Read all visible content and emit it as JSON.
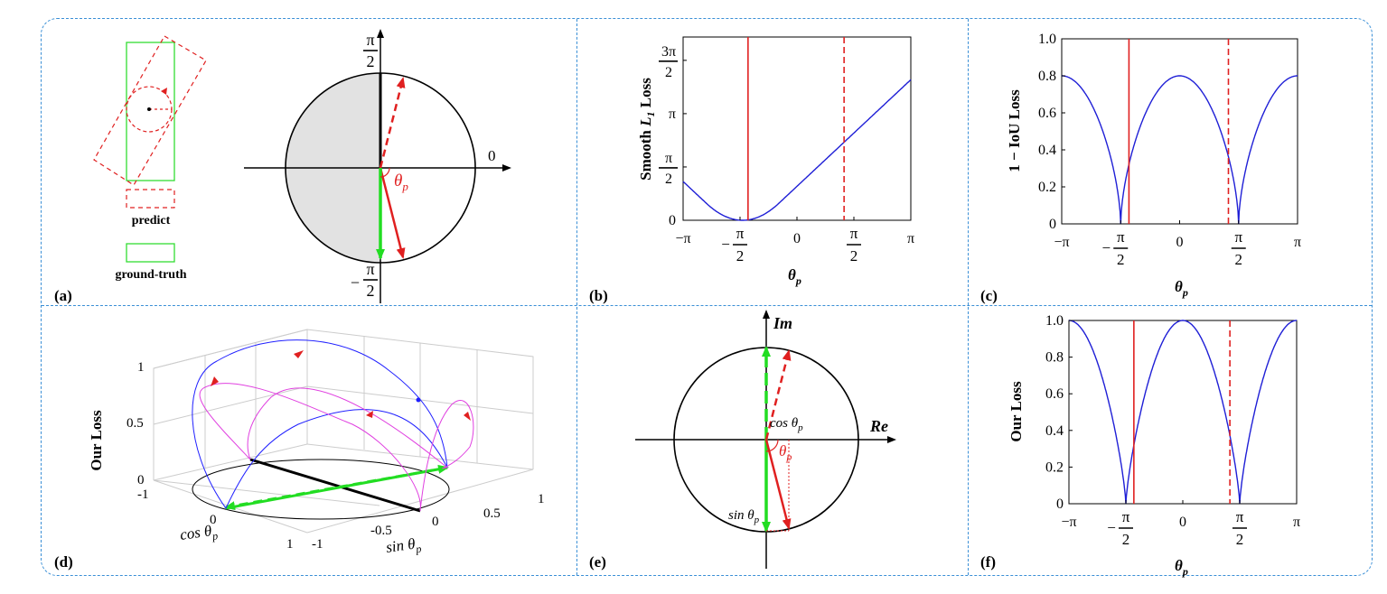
{
  "panels": {
    "a": {
      "label": "(a)",
      "legend_predict": "predict",
      "legend_gt": "ground-truth",
      "top_tick_num": "π",
      "top_tick_den": "2",
      "bottom_tick_num": "π",
      "bottom_tick_den": "2",
      "bottom_tick_sign": "−",
      "right_tick": "0",
      "theta": "θ",
      "theta_sub": "p"
    },
    "b": {
      "label": "(b)"
    },
    "c": {
      "label": "(c)"
    },
    "d": {
      "label": "(d)",
      "zlabel": "Our Loss",
      "z_ticks": [
        "0",
        "0.5",
        "1"
      ],
      "x_ticks": [
        "-1",
        "0",
        "1"
      ],
      "y_ticks": [
        "-1",
        "-0.5",
        "0",
        "0.5",
        "1"
      ],
      "xlabel": "cos θ",
      "xlabel_sub": "p",
      "ylabel": "sin θ",
      "ylabel_sub": "p"
    },
    "e": {
      "label": "(e)",
      "im": "Im",
      "re": "Re",
      "cos_label": "cos θ",
      "cos_sub": "p",
      "sin_label": "sin θ",
      "sin_sub": "p",
      "theta": "θ",
      "theta_sub": "p"
    },
    "f": {
      "label": "(f)"
    }
  },
  "chart_data": [
    {
      "panel": "b",
      "type": "line",
      "ylabel": "Smooth L1 Loss",
      "ylabel_main": "Smooth ",
      "ylabel_L": "L",
      "ylabel_sub": "1",
      "ylabel_tail": " Loss",
      "xlabel": "θp",
      "xlabel_main": "θ",
      "xlabel_sub": "p",
      "x_ticks": [
        {
          "num": "−π",
          "den": ""
        },
        {
          "num": "π",
          "den": "2",
          "sign": "−"
        },
        {
          "num": "0",
          "den": ""
        },
        {
          "num": "π",
          "den": "2"
        },
        {
          "num": "π",
          "den": ""
        }
      ],
      "y_ticks": [
        {
          "num": "0",
          "den": ""
        },
        {
          "num": "π",
          "den": "2"
        },
        {
          "num": "π",
          "den": ""
        },
        {
          "num": "3π",
          "den": "2"
        }
      ],
      "xlim": [
        -3.14159,
        3.14159
      ],
      "ylim": [
        0,
        5.4
      ],
      "series": [
        {
          "x": [
            -3.14159,
            -2.8,
            -2.4,
            -2.0,
            -1.8,
            -1.6,
            -1.4,
            -1.2,
            -1.0,
            0.0,
            1.0,
            2.0,
            3.14159
          ],
          "y": [
            1.57,
            1.1,
            0.6,
            0.22,
            0.08,
            0.02,
            0.02,
            0.1,
            0.22,
            1.2,
            2.2,
            3.2,
            4.35
          ],
          "color": "#1f1fd6"
        }
      ],
      "vlines": [
        {
          "x": -1.35,
          "color": "#e02020",
          "style": "solid"
        },
        {
          "x": 1.3,
          "color": "#e02020",
          "style": "dashed"
        }
      ]
    },
    {
      "panel": "c",
      "type": "line",
      "ylabel": "1 − IoU Loss",
      "xlabel": "θp",
      "xlabel_main": "θ",
      "xlabel_sub": "p",
      "x_ticks": [
        {
          "num": "−π",
          "den": ""
        },
        {
          "num": "π",
          "den": "2",
          "sign": "−"
        },
        {
          "num": "0",
          "den": ""
        },
        {
          "num": "π",
          "den": "2"
        },
        {
          "num": "π",
          "den": ""
        }
      ],
      "y_ticks": [
        "0",
        "0.2",
        "0.4",
        "0.6",
        "0.8",
        "1.0"
      ],
      "xlim": [
        -3.14159,
        3.14159
      ],
      "ylim": [
        0,
        1.0
      ],
      "series": [
        {
          "formula": "0.8*|cos|^0.6",
          "color": "#1f1fd6"
        }
      ],
      "vlines": [
        {
          "x": -1.35,
          "color": "#e02020",
          "style": "solid"
        },
        {
          "x": 1.3,
          "color": "#e02020",
          "style": "dashed"
        }
      ]
    },
    {
      "panel": "f",
      "type": "line",
      "ylabel": "Our Loss",
      "xlabel": "θp",
      "xlabel_main": "θ",
      "xlabel_sub": "p",
      "x_ticks": [
        {
          "num": "−π",
          "den": ""
        },
        {
          "num": "π",
          "den": "2",
          "sign": "−"
        },
        {
          "num": "0",
          "den": ""
        },
        {
          "num": "π",
          "den": "2"
        },
        {
          "num": "π",
          "den": ""
        }
      ],
      "y_ticks": [
        "0",
        "0.2",
        "0.4",
        "0.6",
        "0.8",
        "1.0"
      ],
      "xlim": [
        -3.14159,
        3.14159
      ],
      "ylim": [
        0,
        1.0
      ],
      "series": [
        {
          "formula": "|cos|^0.75",
          "color": "#1f1fd6"
        }
      ],
      "vlines": [
        {
          "x": -1.35,
          "color": "#e02020",
          "style": "solid"
        },
        {
          "x": 1.3,
          "color": "#e02020",
          "style": "dashed"
        }
      ]
    }
  ]
}
